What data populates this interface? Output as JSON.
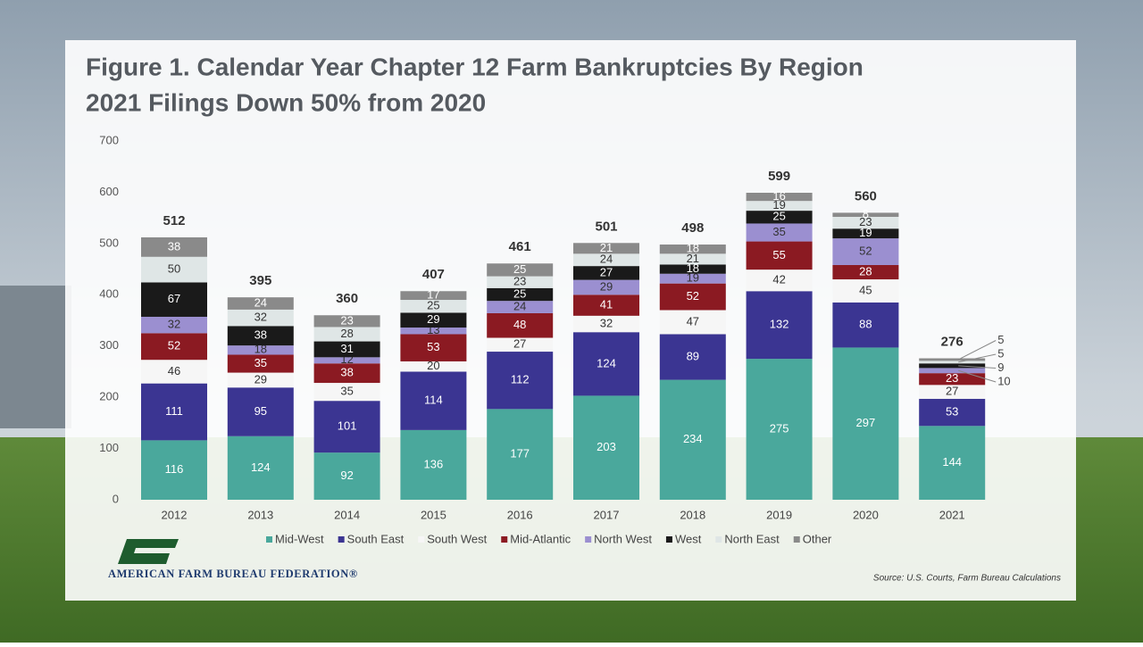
{
  "chart_data": {
    "type": "bar",
    "stacked": true,
    "title": "Figure 1. Calendar Year Chapter 12 Farm Bankruptcies By Region",
    "subtitle": "2021 Filings Down 50% from 2020",
    "categories": [
      "2012",
      "2013",
      "2014",
      "2015",
      "2016",
      "2017",
      "2018",
      "2019",
      "2020",
      "2021"
    ],
    "series": [
      {
        "name": "Mid-West",
        "color": "#4aa89c",
        "values": [
          116,
          124,
          92,
          136,
          177,
          203,
          234,
          275,
          297,
          144
        ]
      },
      {
        "name": "South East",
        "color": "#3b3592",
        "values": [
          111,
          95,
          101,
          114,
          112,
          124,
          89,
          132,
          88,
          53
        ]
      },
      {
        "name": "South West",
        "color": "#f6f6f6",
        "values": [
          46,
          29,
          35,
          20,
          27,
          32,
          47,
          42,
          45,
          27
        ]
      },
      {
        "name": "Mid-Atlantic",
        "color": "#8b1a22",
        "values": [
          52,
          35,
          38,
          53,
          48,
          41,
          52,
          55,
          28,
          23
        ]
      },
      {
        "name": "North West",
        "color": "#9b8fd0",
        "values": [
          32,
          18,
          12,
          13,
          24,
          29,
          19,
          35,
          52,
          10
        ]
      },
      {
        "name": "West",
        "color": "#1a1a1a",
        "values": [
          67,
          38,
          31,
          29,
          25,
          27,
          18,
          25,
          19,
          9
        ]
      },
      {
        "name": "North East",
        "color": "#dfe6e6",
        "values": [
          50,
          32,
          28,
          25,
          23,
          24,
          21,
          19,
          23,
          5
        ]
      },
      {
        "name": "Other",
        "color": "#8a8a8a",
        "values": [
          38,
          24,
          23,
          17,
          25,
          21,
          18,
          16,
          8,
          5
        ]
      }
    ],
    "totals": [
      512,
      395,
      360,
      407,
      461,
      501,
      498,
      599,
      560,
      276
    ],
    "ylim": [
      0,
      700
    ],
    "yticks": [
      0,
      100,
      200,
      300,
      400,
      500,
      600,
      700
    ],
    "grid": false,
    "legend": "bottom"
  },
  "footer": {
    "organization": "AMERICAN FARM BUREAU FEDERATION®",
    "source": "Source: U.S. Courts, Farm Bureau Calculations"
  }
}
